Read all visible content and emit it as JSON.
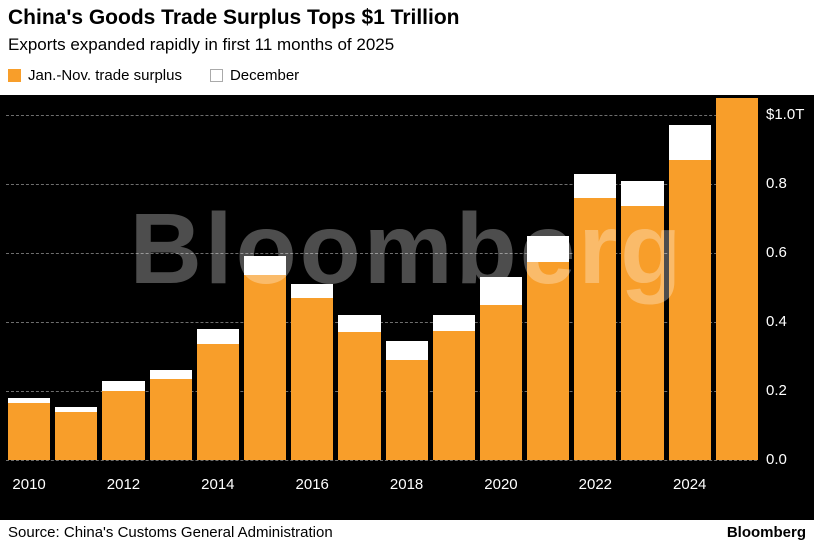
{
  "header": {
    "title": "China's Goods Trade Surplus Tops $1 Trillion",
    "subtitle": "Exports expanded rapidly in first 11 months of 2025"
  },
  "legend": [
    {
      "label": "Jan.-Nov. trade surplus",
      "color": "#F89E2A"
    },
    {
      "label": "December",
      "color": "#FFFFFF"
    }
  ],
  "chart_data": {
    "type": "bar",
    "stacked": true,
    "title": "China's Goods Trade Surplus Tops $1 Trillion",
    "subtitle": "Exports expanded rapidly in first 11 months of 2025",
    "unit": "trillion USD",
    "categories": [
      2010,
      2011,
      2012,
      2013,
      2014,
      2015,
      2016,
      2017,
      2018,
      2019,
      2020,
      2021,
      2022,
      2023,
      2024,
      2025
    ],
    "series": [
      {
        "name": "Jan.-Nov. trade surplus",
        "color": "#F89E2A",
        "values": [
          0.165,
          0.14,
          0.2,
          0.235,
          0.335,
          0.535,
          0.47,
          0.37,
          0.29,
          0.375,
          0.45,
          0.575,
          0.76,
          0.735,
          0.87,
          1.05
        ]
      },
      {
        "name": "December",
        "color": "#FFFFFF",
        "values": [
          0.015,
          0.015,
          0.03,
          0.025,
          0.045,
          0.055,
          0.04,
          0.05,
          0.055,
          0.045,
          0.08,
          0.075,
          0.07,
          0.075,
          0.1,
          0
        ]
      }
    ],
    "x_tick_labels": [
      "2010",
      "2012",
      "2014",
      "2016",
      "2018",
      "2020",
      "2022",
      "2024"
    ],
    "y_ticks": [
      0.0,
      0.2,
      0.4,
      0.6,
      0.8,
      1.0
    ],
    "y_tick_labels": [
      "0.0",
      "0.2",
      "0.4",
      "0.6",
      "0.8",
      "$1.0T"
    ],
    "ylim": [
      0,
      1.1
    ],
    "grid": "dashed horizontal",
    "legend_position": "top-left",
    "watermark": "Bloomberg",
    "background": "#000000"
  },
  "footer": {
    "source": "Source: China's Customs General Administration",
    "brand": "Bloomberg"
  }
}
